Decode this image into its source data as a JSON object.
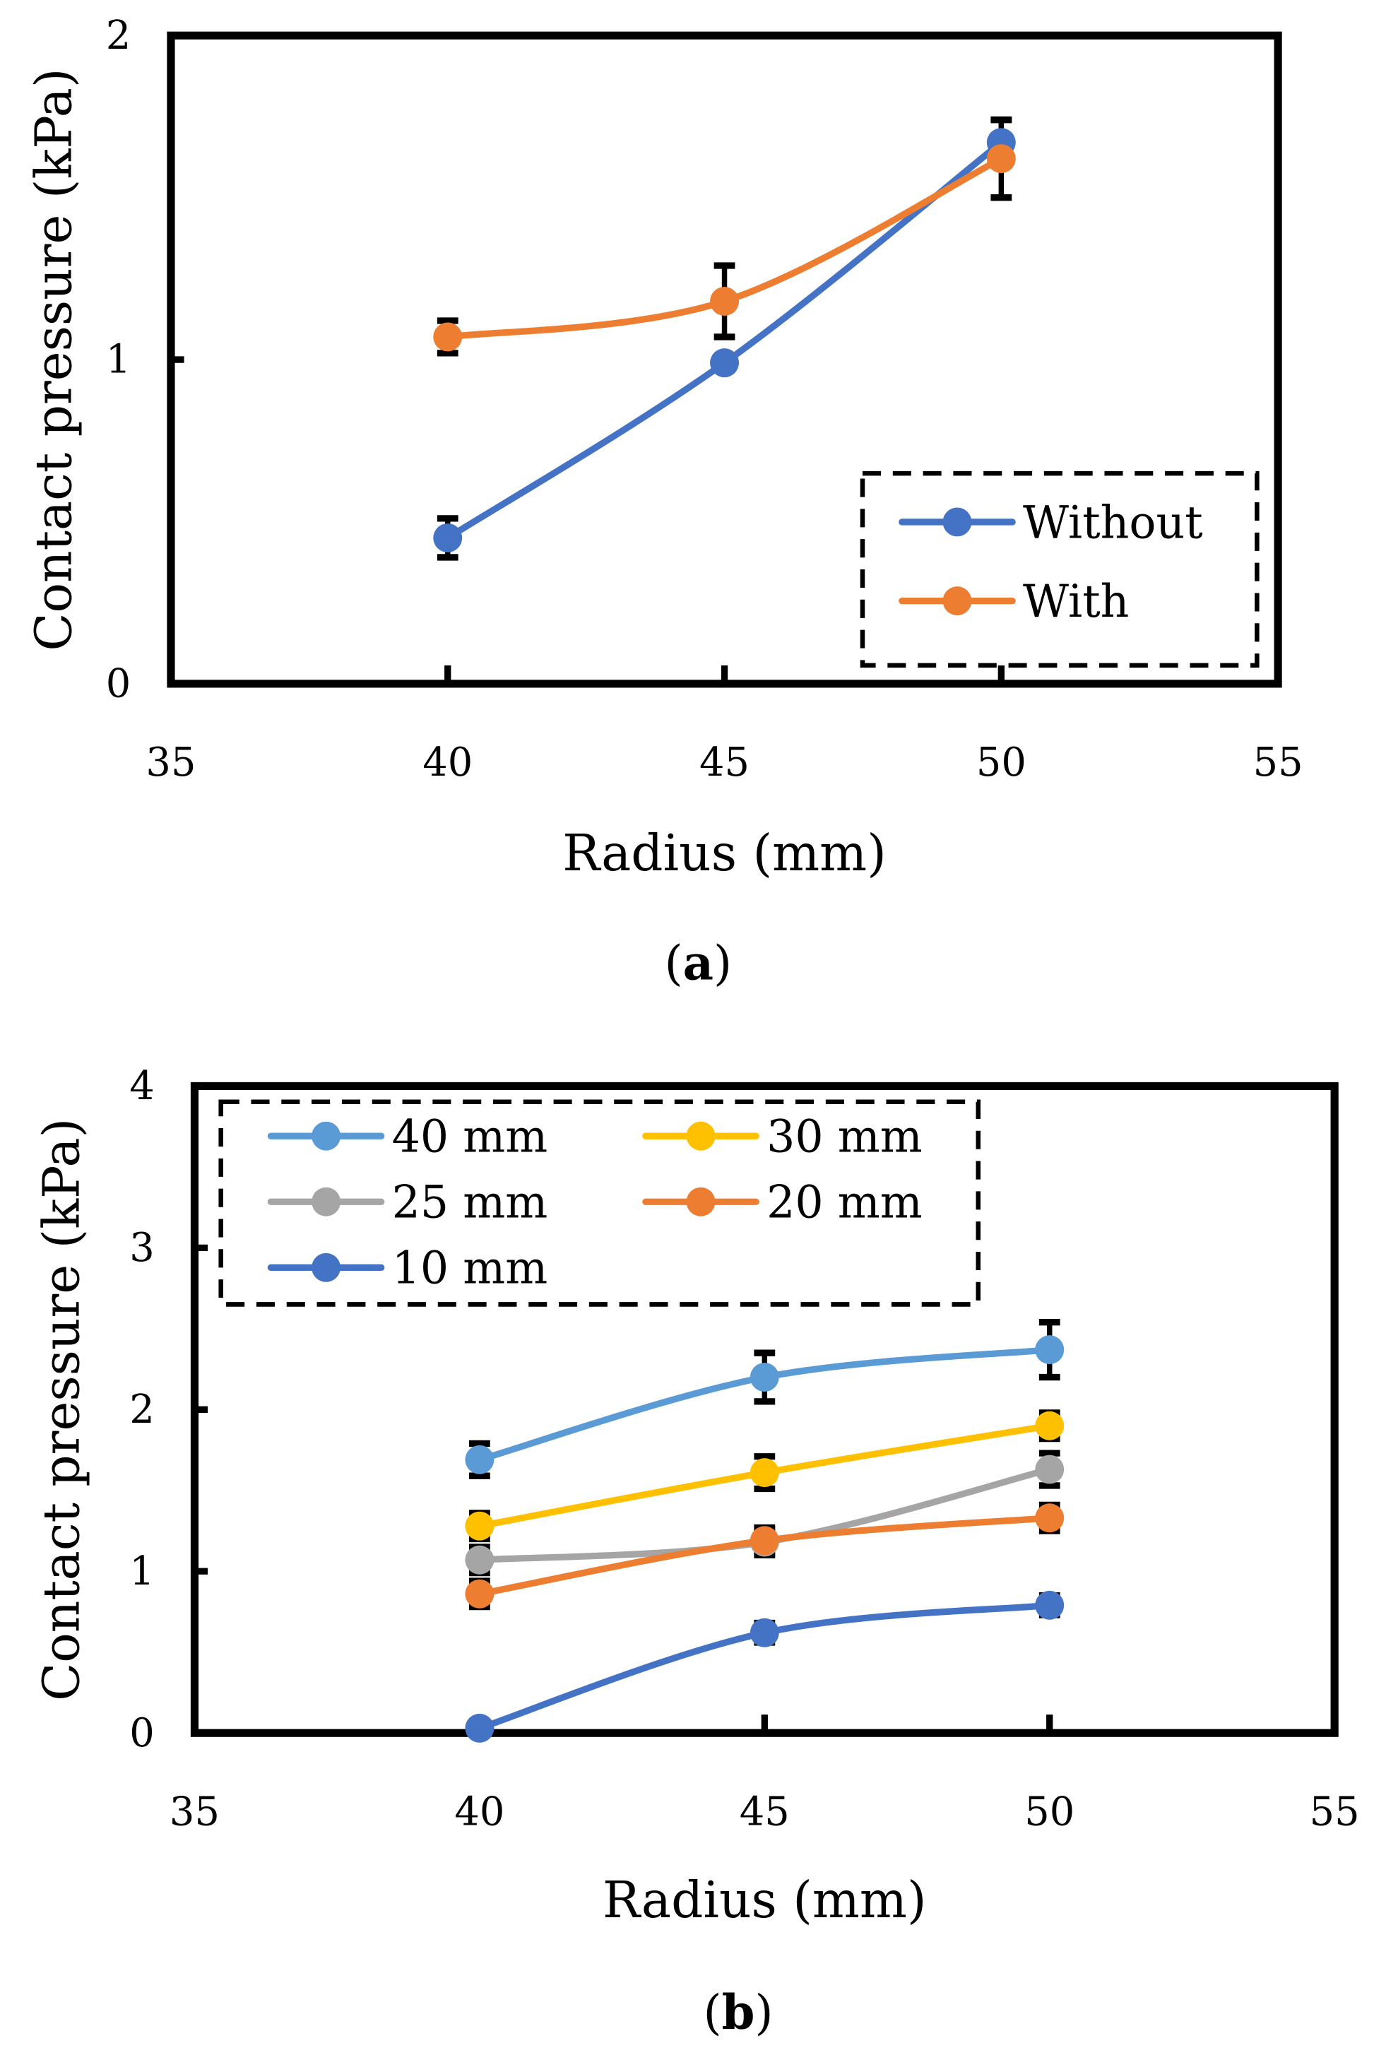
{
  "chart_data": [
    {
      "type": "line",
      "panel_label": "(a)",
      "panel_letter": "a",
      "xlabel": "Radius (mm)",
      "ylabel": "Contact pressure (kPa)",
      "xlim": [
        35,
        55
      ],
      "ylim": [
        0,
        2
      ],
      "xticks": [
        35,
        40,
        45,
        50,
        55
      ],
      "yticks": [
        0,
        1,
        2
      ],
      "grid": false,
      "legend_placement": "bottom-right",
      "x": [
        40,
        45,
        50
      ],
      "series": [
        {
          "name": "Without",
          "color": "#4472C4",
          "values": [
            0.45,
            0.99,
            1.67
          ],
          "errors": [
            0.06,
            0.02,
            0.07
          ]
        },
        {
          "name": "With",
          "color": "#ED7D31",
          "values": [
            1.07,
            1.18,
            1.62
          ],
          "errors": [
            0.05,
            0.11,
            0.12
          ]
        }
      ]
    },
    {
      "type": "line",
      "panel_label": "(b)",
      "panel_letter": "b",
      "xlabel": "Radius (mm)",
      "ylabel": "Contact pressure (kPa)",
      "xlim": [
        35,
        55
      ],
      "ylim": [
        0,
        4
      ],
      "xticks": [
        35,
        40,
        45,
        50,
        55
      ],
      "yticks": [
        0,
        1,
        2,
        3,
        4
      ],
      "grid": false,
      "legend_placement": "top-left",
      "x": [
        40,
        45,
        50
      ],
      "series": [
        {
          "name": "40 mm",
          "color": "#5B9BD5",
          "values": [
            1.69,
            2.2,
            2.37
          ],
          "errors": [
            0.1,
            0.15,
            0.17
          ]
        },
        {
          "name": "30 mm",
          "color": "#FFC000",
          "values": [
            1.28,
            1.61,
            1.9
          ],
          "errors": [
            0.08,
            0.1,
            0.08
          ]
        },
        {
          "name": "25 mm",
          "color": "#A5A5A5",
          "values": [
            1.07,
            1.18,
            1.63
          ],
          "errors": [
            0.08,
            0.08,
            0.1
          ]
        },
        {
          "name": "20 mm",
          "color": "#ED7D31",
          "values": [
            0.86,
            1.19,
            1.33
          ],
          "errors": [
            0.08,
            0.08,
            0.08
          ]
        },
        {
          "name": "10 mm",
          "color": "#4472C4",
          "values": [
            0.03,
            0.62,
            0.79
          ],
          "errors": [
            0.02,
            0.06,
            0.06
          ]
        }
      ]
    }
  ]
}
